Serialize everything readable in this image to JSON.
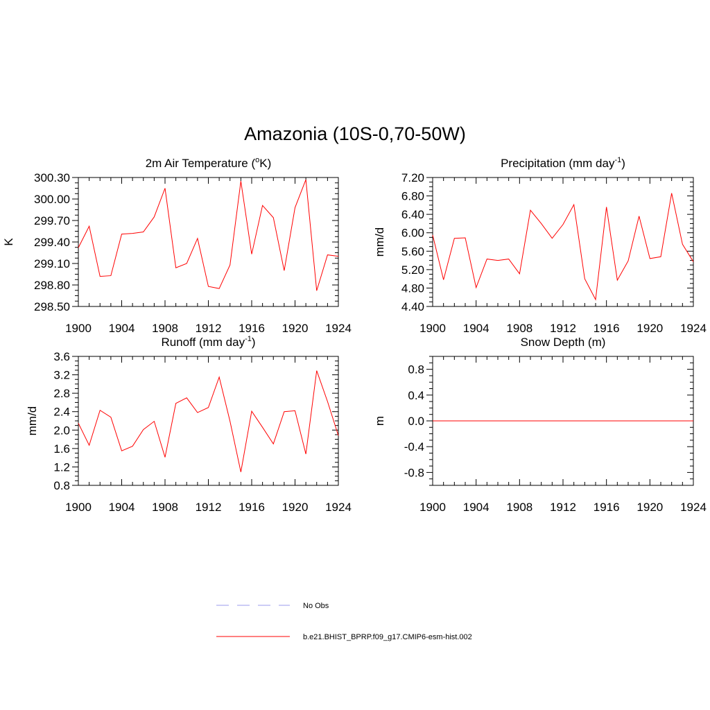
{
  "title": "Amazonia (10S-0,70-50W)",
  "legend": {
    "placement": "bottom-center",
    "entries": [
      {
        "label": "No Obs",
        "style": "dashed",
        "color": "#9999ee"
      },
      {
        "label": "b.e21.BHIST_BPRP.f09_g17.CMIP6-esm-hist.002",
        "style": "solid",
        "color": "#ff0000"
      }
    ]
  },
  "chart_data": [
    {
      "type": "line",
      "title_text": "2m Air Temperature (",
      "title_sup": "o",
      "title_tail": "K)",
      "ylabel": "K",
      "xlim": [
        1900,
        1924
      ],
      "ylim": [
        298.5,
        300.3
      ],
      "x_ticks": [
        1900,
        1904,
        1908,
        1912,
        1916,
        1920,
        1924
      ],
      "y_ticks": [
        "298.50",
        "298.80",
        "299.10",
        "299.40",
        "299.70",
        "300.00",
        "300.30"
      ],
      "x": [
        1900,
        1901,
        1902,
        1903,
        1904,
        1905,
        1906,
        1907,
        1908,
        1909,
        1910,
        1911,
        1912,
        1913,
        1914,
        1915,
        1916,
        1917,
        1918,
        1919,
        1920,
        1921,
        1922,
        1923,
        1924
      ],
      "series": [
        {
          "name": "b.e21.BHIST_BPRP.f09_g17.CMIP6-esm-hist.002",
          "color": "#ff0000",
          "values": [
            299.32,
            299.62,
            298.92,
            298.93,
            299.51,
            299.52,
            299.54,
            299.75,
            300.15,
            299.04,
            299.1,
            299.45,
            298.78,
            298.75,
            299.08,
            300.25,
            299.23,
            299.91,
            299.74,
            299.0,
            299.88,
            300.27,
            298.72,
            299.22,
            299.2
          ]
        }
      ]
    },
    {
      "type": "line",
      "title_text": "Precipitation (mm day",
      "title_sup": "-1",
      "title_tail": ")",
      "ylabel": "mm/d",
      "xlim": [
        1900,
        1924
      ],
      "ylim": [
        4.4,
        7.2
      ],
      "x_ticks": [
        1900,
        1904,
        1908,
        1912,
        1916,
        1920,
        1924
      ],
      "y_ticks": [
        "4.40",
        "4.80",
        "5.20",
        "5.60",
        "6.00",
        "6.40",
        "6.80",
        "7.20"
      ],
      "x": [
        1900,
        1901,
        1902,
        1903,
        1904,
        1905,
        1906,
        1907,
        1908,
        1909,
        1910,
        1911,
        1912,
        1913,
        1914,
        1915,
        1916,
        1917,
        1918,
        1919,
        1920,
        1921,
        1922,
        1923,
        1924
      ],
      "series": [
        {
          "name": "b.e21.BHIST_BPRP.f09_g17.CMIP6-esm-hist.002",
          "color": "#ff0000",
          "values": [
            5.95,
            4.98,
            5.88,
            5.89,
            4.81,
            5.43,
            5.4,
            5.43,
            5.11,
            6.49,
            6.2,
            5.88,
            6.18,
            6.61,
            5.0,
            4.55,
            6.56,
            4.97,
            5.39,
            6.36,
            5.44,
            5.48,
            6.86,
            5.75,
            5.37
          ]
        }
      ]
    },
    {
      "type": "line",
      "title_text": "Runoff (mm day",
      "title_sup": "-1",
      "title_tail": ")",
      "ylabel": "mm/d",
      "xlim": [
        1900,
        1924
      ],
      "ylim": [
        0.8,
        3.6
      ],
      "x_ticks": [
        1900,
        1904,
        1908,
        1912,
        1916,
        1920,
        1924
      ],
      "y_ticks": [
        "0.8",
        "1.2",
        "1.6",
        "2.0",
        "2.4",
        "2.8",
        "3.2",
        "3.6"
      ],
      "x": [
        1900,
        1901,
        1902,
        1903,
        1904,
        1905,
        1906,
        1907,
        1908,
        1909,
        1910,
        1911,
        1912,
        1913,
        1914,
        1915,
        1916,
        1917,
        1918,
        1919,
        1920,
        1921,
        1922,
        1923,
        1924
      ],
      "series": [
        {
          "name": "b.e21.BHIST_BPRP.f09_g17.CMIP6-esm-hist.002",
          "color": "#ff0000",
          "values": [
            2.15,
            1.67,
            2.43,
            2.28,
            1.55,
            1.65,
            2.01,
            2.19,
            1.41,
            2.58,
            2.7,
            2.38,
            2.49,
            3.15,
            2.19,
            1.09,
            2.41,
            2.06,
            1.7,
            2.4,
            2.42,
            1.48,
            3.29,
            2.62,
            1.88
          ]
        }
      ]
    },
    {
      "type": "line",
      "title_text": "Snow Depth (m)",
      "title_sup": "",
      "title_tail": "",
      "ylabel": "m",
      "xlim": [
        1900,
        1924
      ],
      "ylim": [
        -1.0,
        1.0
      ],
      "x_ticks": [
        1900,
        1904,
        1908,
        1912,
        1916,
        1920,
        1924
      ],
      "y_ticks": [
        "-0.8",
        "-0.4",
        "0.0",
        "0.4",
        "0.8"
      ],
      "y_tick_values": [
        -0.8,
        -0.4,
        0.0,
        0.4,
        0.8
      ],
      "x": [
        1900,
        1901,
        1902,
        1903,
        1904,
        1905,
        1906,
        1907,
        1908,
        1909,
        1910,
        1911,
        1912,
        1913,
        1914,
        1915,
        1916,
        1917,
        1918,
        1919,
        1920,
        1921,
        1922,
        1923,
        1924
      ],
      "series": [
        {
          "name": "b.e21.BHIST_BPRP.f09_g17.CMIP6-esm-hist.002",
          "color": "#ff0000",
          "values": [
            0,
            0,
            0,
            0,
            0,
            0,
            0,
            0,
            0,
            0,
            0,
            0,
            0,
            0,
            0,
            0,
            0,
            0,
            0,
            0,
            0,
            0,
            0,
            0,
            0
          ]
        }
      ]
    }
  ]
}
